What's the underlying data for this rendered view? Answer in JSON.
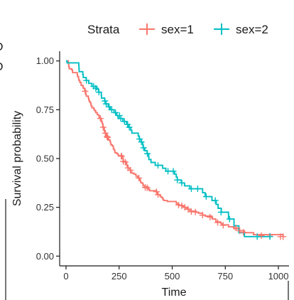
{
  "chart_data": {
    "type": "line",
    "title": "",
    "xlabel": "Time",
    "ylabel": "Survival probability",
    "xlim": [
      -30,
      1050
    ],
    "ylim": [
      -0.05,
      1.05
    ],
    "x_ticks": [
      0,
      250,
      500,
      750,
      1000
    ],
    "y_ticks": [
      0.0,
      0.25,
      0.5,
      0.75,
      1.0
    ],
    "x_tick_labels": [
      "0",
      "250",
      "500",
      "750",
      "1000"
    ],
    "y_tick_labels": [
      "0.00",
      "0.25",
      "0.50",
      "0.75",
      "1.00"
    ],
    "grid": false,
    "legend": {
      "position": "top",
      "title": "Strata",
      "entries": [
        "sex=1",
        "sex=2"
      ]
    },
    "series": [
      {
        "name": "sex=1",
        "color": "#F8766D",
        "steps": [
          [
            0,
            1.0
          ],
          [
            11,
            0.99
          ],
          [
            12,
            0.98
          ],
          [
            13,
            0.97
          ],
          [
            15,
            0.96
          ],
          [
            26,
            0.955
          ],
          [
            30,
            0.95
          ],
          [
            31,
            0.94
          ],
          [
            53,
            0.93
          ],
          [
            54,
            0.92
          ],
          [
            59,
            0.91
          ],
          [
            60,
            0.905
          ],
          [
            61,
            0.9
          ],
          [
            65,
            0.89
          ],
          [
            71,
            0.875
          ],
          [
            79,
            0.87
          ],
          [
            81,
            0.86
          ],
          [
            88,
            0.85
          ],
          [
            92,
            0.84
          ],
          [
            93,
            0.83
          ],
          [
            95,
            0.82
          ],
          [
            105,
            0.81
          ],
          [
            107,
            0.8
          ],
          [
            110,
            0.79
          ],
          [
            116,
            0.78
          ],
          [
            118,
            0.77
          ],
          [
            122,
            0.76
          ],
          [
            131,
            0.755
          ],
          [
            132,
            0.75
          ],
          [
            135,
            0.745
          ],
          [
            140,
            0.735
          ],
          [
            147,
            0.725
          ],
          [
            153,
            0.72
          ],
          [
            156,
            0.71
          ],
          [
            163,
            0.7
          ],
          [
            166,
            0.695
          ],
          [
            167,
            0.69
          ],
          [
            170,
            0.68
          ],
          [
            173,
            0.665
          ],
          [
            176,
            0.655
          ],
          [
            180,
            0.645
          ],
          [
            181,
            0.64
          ],
          [
            183,
            0.635
          ],
          [
            186,
            0.625
          ],
          [
            189,
            0.615
          ],
          [
            197,
            0.605
          ],
          [
            199,
            0.6
          ],
          [
            201,
            0.595
          ],
          [
            207,
            0.59
          ],
          [
            208,
            0.585
          ],
          [
            210,
            0.575
          ],
          [
            212,
            0.57
          ],
          [
            218,
            0.565
          ],
          [
            222,
            0.56
          ],
          [
            223,
            0.55
          ],
          [
            226,
            0.545
          ],
          [
            229,
            0.54
          ],
          [
            230,
            0.53
          ],
          [
            239,
            0.525
          ],
          [
            245,
            0.52
          ],
          [
            246,
            0.515
          ],
          [
            267,
            0.51
          ],
          [
            268,
            0.5
          ],
          [
            269,
            0.49
          ],
          [
            270,
            0.485
          ],
          [
            283,
            0.48
          ],
          [
            284,
            0.475
          ],
          [
            285,
            0.47
          ],
          [
            286,
            0.465
          ],
          [
            288,
            0.46
          ],
          [
            291,
            0.455
          ],
          [
            293,
            0.45
          ],
          [
            301,
            0.445
          ],
          [
            303,
            0.44
          ],
          [
            305,
            0.435
          ],
          [
            306,
            0.43
          ],
          [
            310,
            0.425
          ],
          [
            320,
            0.42
          ],
          [
            329,
            0.41
          ],
          [
            337,
            0.405
          ],
          [
            340,
            0.4
          ],
          [
            345,
            0.395
          ],
          [
            348,
            0.39
          ],
          [
            350,
            0.385
          ],
          [
            351,
            0.38
          ],
          [
            353,
            0.375
          ],
          [
            361,
            0.37
          ],
          [
            363,
            0.365
          ],
          [
            364,
            0.36
          ],
          [
            371,
            0.355
          ],
          [
            387,
            0.345
          ],
          [
            390,
            0.34
          ],
          [
            394,
            0.335
          ],
          [
            426,
            0.33
          ],
          [
            428,
            0.325
          ],
          [
            429,
            0.32
          ],
          [
            433,
            0.315
          ],
          [
            442,
            0.31
          ],
          [
            444,
            0.305
          ],
          [
            450,
            0.3
          ],
          [
            455,
            0.295
          ],
          [
            457,
            0.29
          ],
          [
            460,
            0.285
          ],
          [
            477,
            0.28
          ],
          [
            519,
            0.275
          ],
          [
            520,
            0.27
          ],
          [
            524,
            0.265
          ],
          [
            533,
            0.26
          ],
          [
            550,
            0.255
          ],
          [
            558,
            0.25
          ],
          [
            567,
            0.245
          ],
          [
            574,
            0.24
          ],
          [
            583,
            0.23
          ],
          [
            613,
            0.225
          ],
          [
            624,
            0.22
          ],
          [
            643,
            0.21
          ],
          [
            655,
            0.205
          ],
          [
            687,
            0.195
          ],
          [
            689,
            0.19
          ],
          [
            705,
            0.18
          ],
          [
            707,
            0.175
          ],
          [
            728,
            0.17
          ],
          [
            731,
            0.165
          ],
          [
            735,
            0.16
          ],
          [
            765,
            0.15
          ],
          [
            791,
            0.14
          ],
          [
            814,
            0.13
          ],
          [
            840,
            0.12
          ],
          [
            883,
            0.11
          ],
          [
            1022,
            0.1
          ]
        ],
        "censored": [
          [
            90,
            0.845
          ],
          [
            162,
            0.705
          ],
          [
            175,
            0.66
          ],
          [
            185,
            0.63
          ],
          [
            193,
            0.612
          ],
          [
            196,
            0.608
          ],
          [
            260,
            0.512
          ],
          [
            262,
            0.512
          ],
          [
            270,
            0.485
          ],
          [
            279,
            0.482
          ],
          [
            292,
            0.452
          ],
          [
            303,
            0.44
          ],
          [
            343,
            0.4
          ],
          [
            373,
            0.352
          ],
          [
            382,
            0.35
          ],
          [
            426,
            0.33
          ],
          [
            433,
            0.315
          ],
          [
            530,
            0.262
          ],
          [
            545,
            0.258
          ],
          [
            559,
            0.25
          ],
          [
            575,
            0.24
          ],
          [
            590,
            0.228
          ],
          [
            609,
            0.226
          ],
          [
            643,
            0.21
          ],
          [
            678,
            0.2
          ],
          [
            714,
            0.172
          ],
          [
            740,
            0.158
          ],
          [
            800,
            0.145
          ],
          [
            818,
            0.13
          ],
          [
            835,
            0.122
          ],
          [
            920,
            0.105
          ],
          [
            960,
            0.102
          ],
          [
            1010,
            0.1
          ],
          [
            1022,
            0.1
          ]
        ]
      },
      {
        "name": "sex=2",
        "color": "#00BFC4",
        "steps": [
          [
            0,
            1.0
          ],
          [
            5,
            0.99
          ],
          [
            60,
            0.975
          ],
          [
            61,
            0.96
          ],
          [
            62,
            0.945
          ],
          [
            79,
            0.93
          ],
          [
            81,
            0.915
          ],
          [
            95,
            0.9
          ],
          [
            107,
            0.885
          ],
          [
            122,
            0.87
          ],
          [
            145,
            0.855
          ],
          [
            153,
            0.84
          ],
          [
            166,
            0.825
          ],
          [
            167,
            0.81
          ],
          [
            182,
            0.795
          ],
          [
            186,
            0.78
          ],
          [
            199,
            0.765
          ],
          [
            208,
            0.75
          ],
          [
            226,
            0.735
          ],
          [
            239,
            0.72
          ],
          [
            245,
            0.705
          ],
          [
            268,
            0.69
          ],
          [
            285,
            0.675
          ],
          [
            293,
            0.66
          ],
          [
            305,
            0.645
          ],
          [
            310,
            0.63
          ],
          [
            340,
            0.615
          ],
          [
            345,
            0.6
          ],
          [
            353,
            0.585
          ],
          [
            361,
            0.57
          ],
          [
            363,
            0.555
          ],
          [
            371,
            0.54
          ],
          [
            382,
            0.525
          ],
          [
            389,
            0.51
          ],
          [
            390,
            0.495
          ],
          [
            400,
            0.48
          ],
          [
            420,
            0.465
          ],
          [
            455,
            0.45
          ],
          [
            470,
            0.435
          ],
          [
            511,
            0.42
          ],
          [
            519,
            0.405
          ],
          [
            524,
            0.39
          ],
          [
            543,
            0.375
          ],
          [
            558,
            0.36
          ],
          [
            583,
            0.345
          ],
          [
            643,
            0.325
          ],
          [
            655,
            0.305
          ],
          [
            687,
            0.285
          ],
          [
            707,
            0.265
          ],
          [
            716,
            0.245
          ],
          [
            731,
            0.225
          ],
          [
            765,
            0.19
          ],
          [
            791,
            0.155
          ],
          [
            814,
            0.12
          ],
          [
            840,
            0.1
          ]
        ],
        "censored": [
          [
            96,
            0.9
          ],
          [
            130,
            0.87
          ],
          [
            140,
            0.86
          ],
          [
            155,
            0.84
          ],
          [
            183,
            0.795
          ],
          [
            189,
            0.78
          ],
          [
            203,
            0.765
          ],
          [
            215,
            0.75
          ],
          [
            233,
            0.735
          ],
          [
            252,
            0.72
          ],
          [
            258,
            0.705
          ],
          [
            275,
            0.69
          ],
          [
            290,
            0.675
          ],
          [
            298,
            0.66
          ],
          [
            346,
            0.6
          ],
          [
            355,
            0.585
          ],
          [
            365,
            0.555
          ],
          [
            383,
            0.525
          ],
          [
            433,
            0.465
          ],
          [
            480,
            0.435
          ],
          [
            505,
            0.435
          ],
          [
            524,
            0.39
          ],
          [
            545,
            0.375
          ],
          [
            590,
            0.345
          ],
          [
            620,
            0.345
          ],
          [
            660,
            0.305
          ],
          [
            703,
            0.285
          ],
          [
            730,
            0.225
          ],
          [
            770,
            0.19
          ],
          [
            900,
            0.1
          ],
          [
            960,
            0.1
          ]
        ]
      }
    ]
  }
}
